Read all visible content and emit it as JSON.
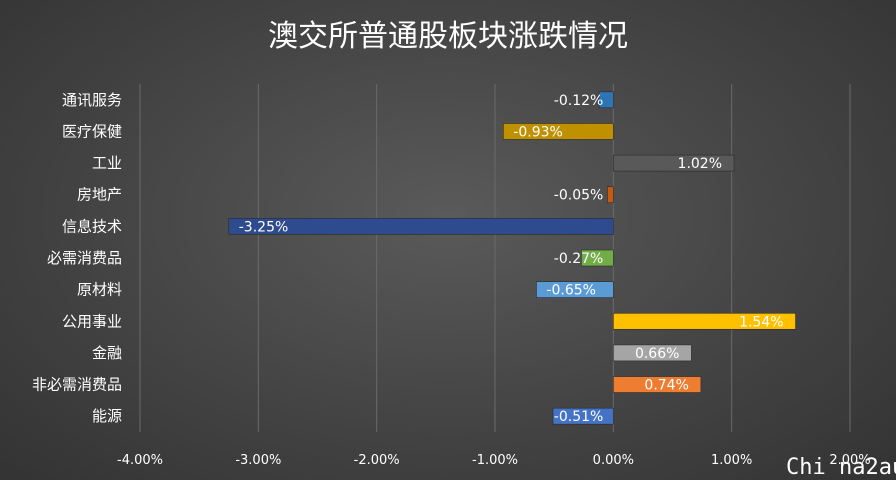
{
  "watermark": "Chi na2au",
  "chart_data": {
    "type": "bar",
    "orientation": "horizontal",
    "title": "澳交所普通股板块涨跌情况",
    "xlabel": "",
    "ylabel": "",
    "xlim": [
      -0.04,
      0.02
    ],
    "grid": true,
    "legend": "none",
    "categories": [
      "通讯服务",
      "医疗保健",
      "工业",
      "房地产",
      "信息技术",
      "必需消费品",
      "原材料",
      "公用事业",
      "金融",
      "非必需消费品",
      "能源"
    ],
    "values": [
      -0.0012,
      -0.0093,
      0.0102,
      -0.0005,
      -0.0325,
      -0.0027,
      -0.0065,
      0.0154,
      0.0066,
      0.0074,
      -0.0051
    ],
    "data_labels": [
      "-0.12%",
      "-0.93%",
      "1.02%",
      "-0.05%",
      "-3.25%",
      "-0.27%",
      "-0.65%",
      "1.54%",
      "0.66%",
      "0.74%",
      "-0.51%"
    ],
    "tick_values": [
      -0.04,
      -0.03,
      -0.02,
      -0.01,
      0,
      0.01,
      0.02
    ],
    "tick_labels": [
      "-4.00%",
      "-3.00%",
      "-2.00%",
      "-1.00%",
      "0.00%",
      "1.00%",
      "2.00%"
    ],
    "colors": [
      "#2e75b6",
      "#bf9000",
      "#595959",
      "#c55a11",
      "#2f4b8f",
      "#70ad47",
      "#5b9bd5",
      "#ffc000",
      "#a5a5a5",
      "#ed7d31",
      "#4472c4"
    ],
    "label_colors": [
      "#ffffff",
      "#ffffff",
      "#ffffff",
      "#ffffff",
      "#ffffff",
      "#ffffff",
      "#ffffff",
      "#ffffff",
      "#ffffff",
      "#ffffff",
      "#ffffff"
    ]
  }
}
